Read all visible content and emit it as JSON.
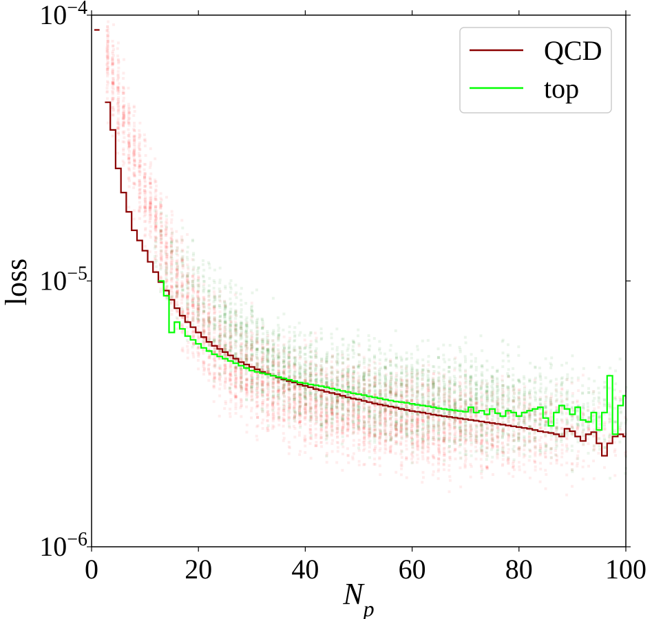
{
  "chart_data": {
    "type": "line",
    "xlabel": "N_p",
    "ylabel": "loss",
    "xlim": [
      0,
      100
    ],
    "ylim": [
      1e-06,
      0.0001
    ],
    "yscale": "log",
    "grid": false,
    "legend_position": "top-right",
    "x_ticks": [
      "0",
      "20",
      "40",
      "60",
      "80",
      "100"
    ],
    "y_ticks": [
      {
        "base": "10",
        "exp": "−6"
      },
      {
        "base": "10",
        "exp": "−5"
      },
      {
        "base": "10",
        "exp": "−4"
      }
    ],
    "series": [
      {
        "name": "QCD",
        "color": "#8b0000",
        "x": [
          1,
          3,
          4,
          5,
          6,
          7,
          8,
          9,
          10,
          11,
          12,
          13,
          14,
          15,
          16,
          17,
          18,
          19,
          20,
          21,
          22,
          23,
          24,
          25,
          26,
          27,
          28,
          29,
          30,
          31,
          32,
          33,
          34,
          35,
          36,
          37,
          38,
          39,
          40,
          41,
          42,
          43,
          44,
          45,
          46,
          47,
          48,
          49,
          50,
          51,
          52,
          53,
          54,
          55,
          56,
          57,
          58,
          59,
          60,
          61,
          62,
          63,
          64,
          65,
          66,
          67,
          68,
          69,
          70,
          71,
          72,
          73,
          74,
          75,
          76,
          77,
          78,
          79,
          80,
          81,
          82,
          83,
          84,
          85,
          86,
          87,
          88,
          89,
          90,
          91,
          92,
          93,
          94,
          95,
          96,
          97,
          98,
          99,
          100
        ],
        "values": [
          8.8e-05,
          4.7e-05,
          3.7e-05,
          2.65e-05,
          2.15e-05,
          1.82e-05,
          1.55e-05,
          1.42e-05,
          1.3e-05,
          1.18e-05,
          1.08e-05,
          9.9e-06,
          9.2e-06,
          8.5e-06,
          7.9e-06,
          7.4e-06,
          7e-06,
          6.7e-06,
          6.4e-06,
          6.15e-06,
          5.9e-06,
          5.7e-06,
          5.55e-06,
          5.4e-06,
          5.25e-06,
          5.1e-06,
          4.95e-06,
          4.85e-06,
          4.75e-06,
          4.65e-06,
          4.55e-06,
          4.47e-06,
          4.4e-06,
          4.33e-06,
          4.26e-06,
          4.2e-06,
          4.15e-06,
          4.08e-06,
          4.03e-06,
          3.98e-06,
          3.92e-06,
          3.88e-06,
          3.83e-06,
          3.79e-06,
          3.75e-06,
          3.7e-06,
          3.65e-06,
          3.61e-06,
          3.58e-06,
          3.54e-06,
          3.5e-06,
          3.46e-06,
          3.43e-06,
          3.4e-06,
          3.37e-06,
          3.34e-06,
          3.3e-06,
          3.27e-06,
          3.24e-06,
          3.22e-06,
          3.2e-06,
          3.17e-06,
          3.14e-06,
          3.12e-06,
          3.1e-06,
          3.08e-06,
          3.06e-06,
          3.04e-06,
          3.02e-06,
          3e-06,
          2.98e-06,
          2.96e-06,
          2.94e-06,
          2.92e-06,
          2.9e-06,
          2.88e-06,
          2.86e-06,
          2.84e-06,
          2.82e-06,
          2.8e-06,
          2.78e-06,
          2.75e-06,
          2.72e-06,
          2.7e-06,
          2.68e-06,
          2.65e-06,
          2.6e-06,
          2.78e-06,
          2.72e-06,
          2.6e-06,
          2.5e-06,
          2.65e-06,
          2.7e-06,
          2.45e-06,
          2.2e-06,
          2.45e-06,
          2.6e-06,
          2.65e-06,
          2.6e-06
        ]
      },
      {
        "name": "top",
        "color": "#00ff00",
        "x": [
          13,
          14,
          15,
          16,
          17,
          18,
          19,
          20,
          21,
          22,
          23,
          24,
          25,
          26,
          27,
          28,
          29,
          30,
          31,
          32,
          33,
          34,
          35,
          36,
          37,
          38,
          39,
          40,
          41,
          42,
          43,
          44,
          45,
          46,
          47,
          48,
          49,
          50,
          51,
          52,
          53,
          54,
          55,
          56,
          57,
          58,
          59,
          60,
          61,
          62,
          63,
          64,
          65,
          66,
          67,
          68,
          69,
          70,
          71,
          72,
          73,
          74,
          75,
          76,
          77,
          78,
          79,
          80,
          81,
          82,
          83,
          84,
          85,
          86,
          87,
          88,
          89,
          90,
          91,
          92,
          93,
          94,
          95,
          96,
          97,
          98,
          99,
          100
        ],
        "values": [
          1e-05,
          8.8e-06,
          6.4e-06,
          7e-06,
          6.6e-06,
          6.2e-06,
          6e-06,
          5.8e-06,
          5.6e-06,
          5.45e-06,
          5.3e-06,
          5.2e-06,
          5.1e-06,
          5e-06,
          4.9e-06,
          4.8e-06,
          4.7e-06,
          4.6e-06,
          4.55e-06,
          4.5e-06,
          4.45e-06,
          4.4e-06,
          4.35e-06,
          4.3e-06,
          4.25e-06,
          4.2e-06,
          4.15e-06,
          4.12e-06,
          4.08e-06,
          4.05e-06,
          4.02e-06,
          3.98e-06,
          3.94e-06,
          3.9e-06,
          3.86e-06,
          3.82e-06,
          3.78e-06,
          3.75e-06,
          3.72e-06,
          3.68e-06,
          3.65e-06,
          3.62e-06,
          3.58e-06,
          3.55e-06,
          3.52e-06,
          3.5e-06,
          3.48e-06,
          3.45e-06,
          3.42e-06,
          3.4e-06,
          3.38e-06,
          3.35e-06,
          3.32e-06,
          3.3e-06,
          3.28e-06,
          3.26e-06,
          3.24e-06,
          3.22e-06,
          3.35e-06,
          3.2e-06,
          3.25e-06,
          3.15e-06,
          3.3e-06,
          3.18e-06,
          3.1e-06,
          3.25e-06,
          3.2e-06,
          3.1e-06,
          3.2e-06,
          3.25e-06,
          3.3e-06,
          3.35e-06,
          3.05e-06,
          2.85e-06,
          3.2e-06,
          3.4e-06,
          3.3e-06,
          3.15e-06,
          3.35e-06,
          3e-06,
          2.95e-06,
          3.2e-06,
          2.75e-06,
          3.2e-06,
          4.4e-06,
          2.65e-06,
          3.4e-06,
          3.7e-06
        ]
      }
    ],
    "scatter_clouds": [
      {
        "color": "#ff0000",
        "x_range": [
          3,
          100
        ],
        "description_mode": "qcd"
      },
      {
        "color": "#008000",
        "x_range": [
          12,
          100
        ],
        "description_mode": "top"
      }
    ]
  }
}
